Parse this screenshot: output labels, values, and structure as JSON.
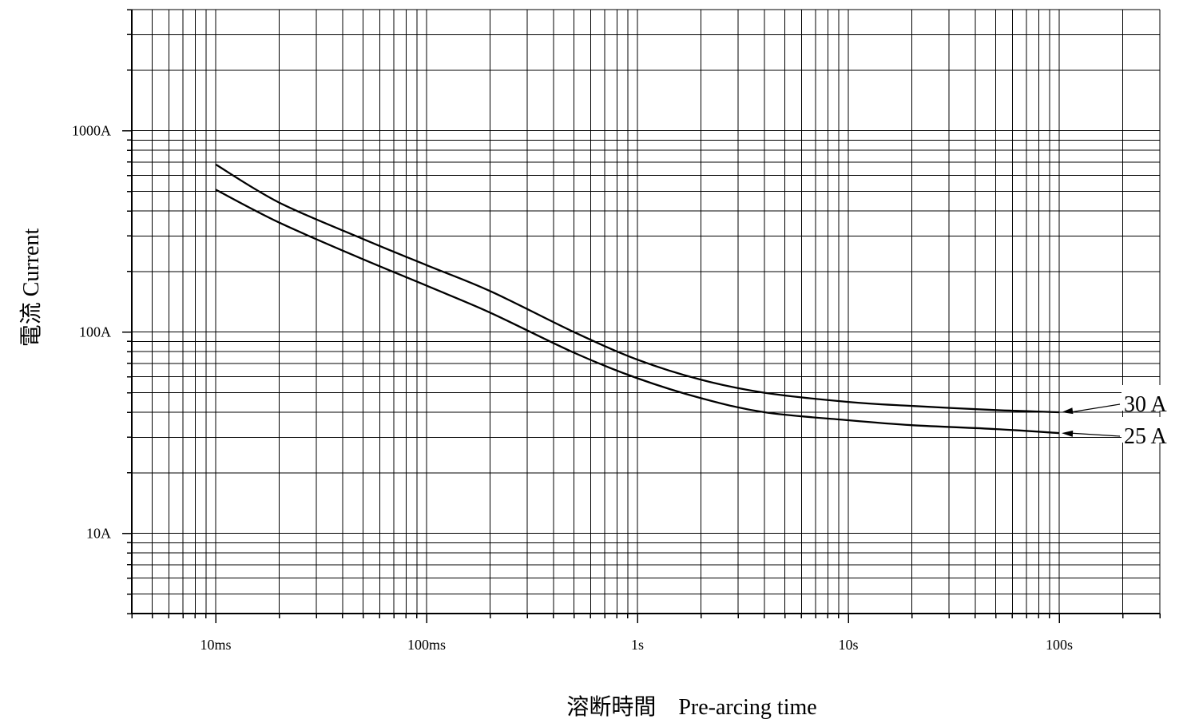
{
  "chart_data": {
    "type": "line",
    "x_scale": "log",
    "y_scale": "log",
    "grid": true,
    "xlabel": "溶断時間　Pre-arcing time",
    "ylabel": "電流 Current",
    "xlim": [
      "4ms",
      "300s"
    ],
    "ylim": [
      "4A",
      "4000A"
    ],
    "x_ticks": [
      "10ms",
      "100ms",
      "1s",
      "10s",
      "100s"
    ],
    "y_ticks": [
      "10A",
      "100A",
      "1000A"
    ],
    "series": [
      {
        "name": "30 A",
        "x": [
          "10ms",
          "20ms",
          "50ms",
          "100ms",
          "200ms",
          "500ms",
          "1s",
          "2s",
          "4s",
          "10s",
          "20s",
          "50s",
          "100s"
        ],
        "y": [
          680,
          440,
          290,
          215,
          160,
          100,
          73,
          58,
          50,
          45,
          43,
          41,
          40
        ]
      },
      {
        "name": "25 A",
        "x": [
          "10ms",
          "20ms",
          "50ms",
          "100ms",
          "200ms",
          "500ms",
          "1s",
          "2s",
          "4s",
          "10s",
          "20s",
          "50s",
          "100s"
        ],
        "y": [
          510,
          350,
          230,
          170,
          125,
          79,
          59,
          47,
          40,
          36.5,
          34.5,
          33,
          31.5
        ]
      }
    ]
  }
}
